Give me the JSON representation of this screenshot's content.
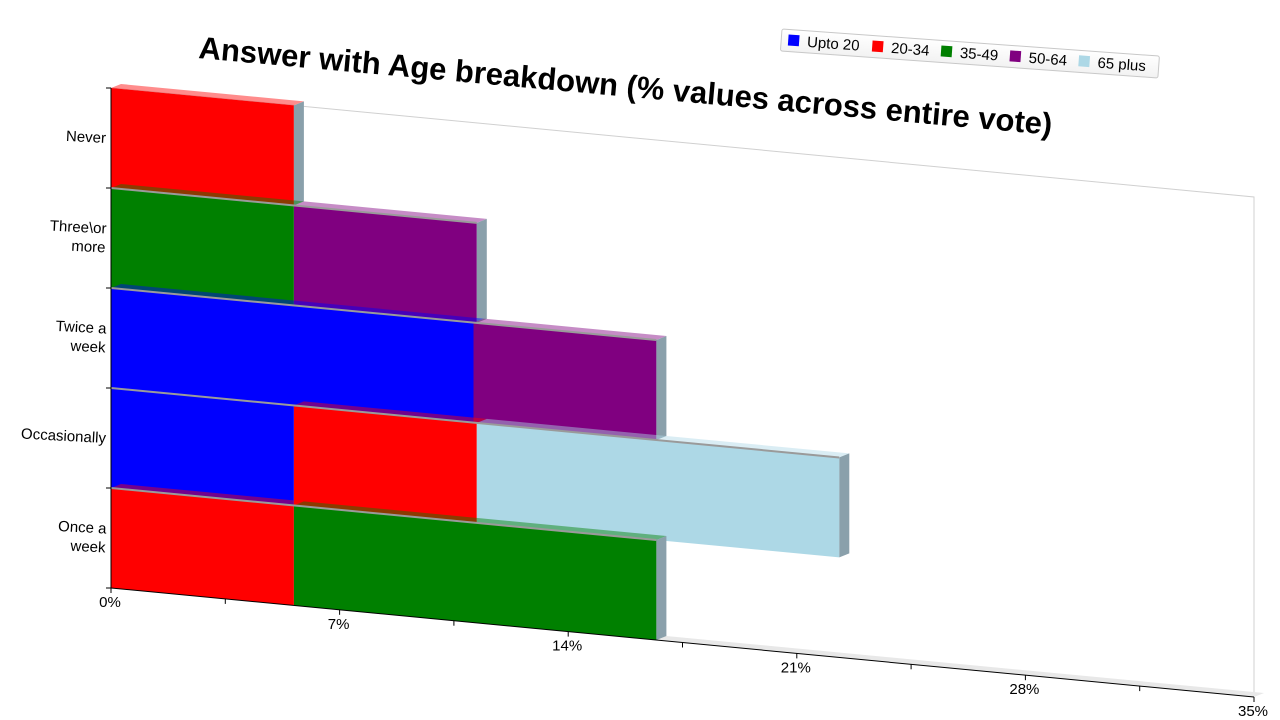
{
  "chart_data": {
    "type": "bar",
    "orientation": "horizontal",
    "stacked": true,
    "title": "Answer with Age breakdown (% values across entire vote)",
    "categories": [
      "Never",
      "Three\\or more",
      "Twice a week",
      "Occasionally",
      "Once a week"
    ],
    "series": [
      {
        "name": "Upto 20",
        "color": "#0000ff",
        "values": [
          0,
          0,
          11.1,
          5.6,
          0
        ]
      },
      {
        "name": "20-34",
        "color": "#ff0000",
        "values": [
          5.6,
          0,
          0,
          5.6,
          5.6
        ]
      },
      {
        "name": "35-49",
        "color": "#008000",
        "values": [
          0,
          5.6,
          0,
          0,
          11.1
        ]
      },
      {
        "name": "50-64",
        "color": "#800080",
        "values": [
          0,
          5.6,
          5.6,
          0,
          0
        ]
      },
      {
        "name": "65 plus",
        "color": "#add8e6",
        "values": [
          0,
          0,
          0,
          11.1,
          0
        ]
      }
    ],
    "xlim": [
      0,
      35
    ],
    "xticks": [
      "0%",
      "7%",
      "14%",
      "21%",
      "28%",
      "35%"
    ],
    "legend": "top-right"
  }
}
